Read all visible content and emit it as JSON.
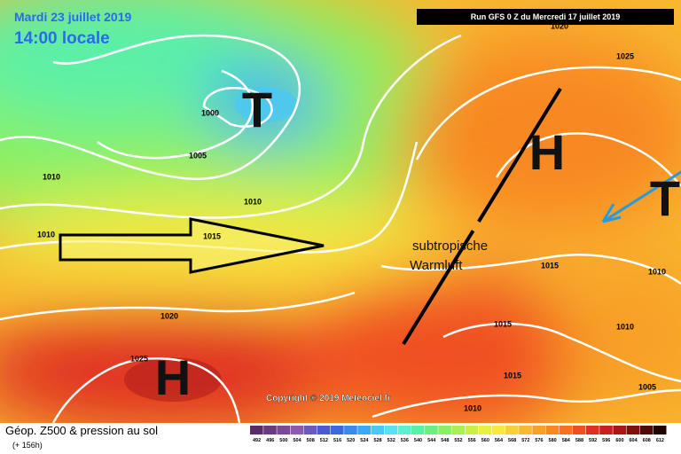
{
  "header": {
    "date": "Mardi 23 juillet 2019",
    "time": "14:00 locale",
    "run": "Run GFS 0 Z du Mercredi 17 juillet 2019"
  },
  "symbols": [
    "T",
    "H",
    "T",
    "H"
  ],
  "annotation": {
    "line1": "subtropische",
    "line2": "Warmluft"
  },
  "isobar_labels": [
    "1000",
    "1005",
    "1010",
    "1010",
    "1010",
    "1015",
    "1020",
    "1025",
    "1020",
    "1025",
    "1015",
    "1010",
    "1015",
    "1010",
    "1015",
    "1005",
    "1010"
  ],
  "copyright": "Copyright © 2019 Meteociel.fr",
  "footer": {
    "title": "Géop. Z500 & pression au sol",
    "lead": "(+ 156h)"
  },
  "legend": {
    "values": [
      "492",
      "496",
      "500",
      "504",
      "508",
      "512",
      "516",
      "520",
      "524",
      "528",
      "532",
      "536",
      "540",
      "544",
      "548",
      "552",
      "556",
      "560",
      "564",
      "568",
      "572",
      "576",
      "580",
      "584",
      "588",
      "592",
      "596",
      "600",
      "604",
      "608",
      "612"
    ],
    "colors": [
      "#5a2a6a",
      "#6a3a80",
      "#7a4a98",
      "#8a5ab0",
      "#6a5ac0",
      "#4a5ad0",
      "#3a6ae0",
      "#3a8af0",
      "#3aaaf8",
      "#4ac8f8",
      "#5ae0f0",
      "#5af0d0",
      "#5af0a8",
      "#6af080",
      "#8af060",
      "#aaf050",
      "#caf048",
      "#e8f040",
      "#f8e840",
      "#f8d038",
      "#f8b830",
      "#f8a028",
      "#f88820",
      "#f87020",
      "#f05020",
      "#e03020",
      "#c82020",
      "#a81818",
      "#801010",
      "#500808",
      "#200404"
    ]
  }
}
